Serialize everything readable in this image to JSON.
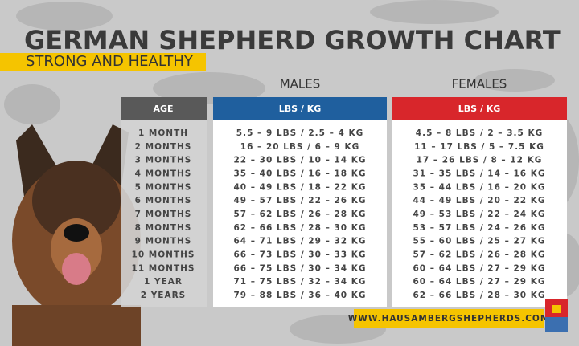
{
  "header": {
    "title": "GERMAN SHEPHERD GROWTH CHART",
    "subtitle": "STRONG AND HEALTHY"
  },
  "table": {
    "group_headers": [
      "MALES",
      "FEMALES"
    ],
    "columns": [
      "AGE",
      "LBS / KG",
      "LBS / KG"
    ],
    "rows": [
      [
        "1 MONTH",
        "5.5 – 9 LBS / 2.5 – 4 KG",
        "4.5 – 8 LBS / 2 – 3.5 KG"
      ],
      [
        "2 MONTHS",
        "16 – 20 LBS / 6 – 9 KG",
        "11 – 17 LBS / 5 – 7.5 KG"
      ],
      [
        "3 MONTHS",
        "22 – 30 LBS / 10 – 14 KG",
        "17 – 26 LBS / 8 – 12 KG"
      ],
      [
        "4 MONTHS",
        "35 – 40 LBS / 16 – 18 KG",
        "31 – 35 LBS / 14 – 16 KG"
      ],
      [
        "5 MONTHS",
        "40 – 49 LBS / 18 – 22 KG",
        "35 – 44 LBS / 16 – 20 KG"
      ],
      [
        "6 MONTHS",
        "49 – 57 LBS / 22 – 26 KG",
        "44 – 49 LBS / 20 – 22 KG"
      ],
      [
        "7 MONTHS",
        "57 – 62 LBS / 26 – 28 KG",
        "49 – 53 LBS / 22 – 24 KG"
      ],
      [
        "8 MONTHS",
        "62 – 66 LBS / 28 – 30 KG",
        "53 – 57 LBS / 24 – 26 KG"
      ],
      [
        "9 MONTHS",
        "64 – 71 LBS / 29 – 32 KG",
        "55 – 60 LBS / 25 – 27 KG"
      ],
      [
        "10 MONTHS",
        "66 – 73 LBS / 30 – 33 KG",
        "57 – 62 LBS / 26 – 28 KG"
      ],
      [
        "11 MONTHS",
        "66 – 75 LBS / 30 – 34 KG",
        "60 – 64 LBS / 27 – 29 KG"
      ],
      [
        "1 YEAR",
        "71 – 75 LBS / 32 – 34 KG",
        "60 – 64 LBS / 27 – 29 KG"
      ],
      [
        "2 YEARS",
        "79 – 88 LBS / 36 – 40 KG",
        "62 – 66 LBS / 28 – 30 KG"
      ]
    ]
  },
  "footer": {
    "website": "WWW.HAUSAMBERGSHEPHERDS.COM"
  }
}
